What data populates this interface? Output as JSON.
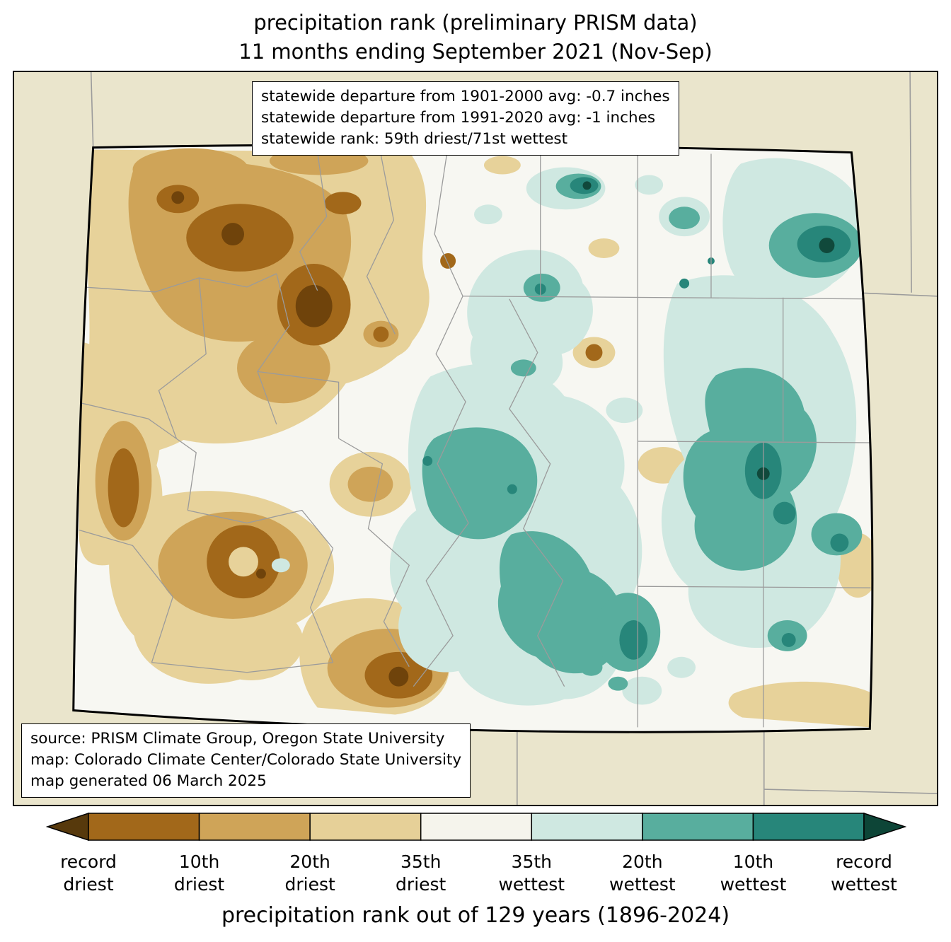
{
  "title": {
    "line1": "precipitation rank (preliminary PRISM data)",
    "line2": "11 months ending September 2021 (Nov-Sep)"
  },
  "stats_box": {
    "lines": [
      "statewide departure from 1901-2000 avg: -0.7 inches",
      "statewide departure from 1991-2020 avg: -1 inches",
      "statewide rank: 59th driest/71st wettest"
    ]
  },
  "source_box": {
    "lines": [
      "source: PRISM Climate Group, Oregon State University",
      "map: Colorado Climate Center/Colorado State University",
      "map generated 06 March 2025"
    ]
  },
  "colorbar": {
    "caption": "precipitation rank out of 129 years (1896-2024)",
    "left_arrow_color": "#57390c",
    "right_arrow_color": "#0d4537",
    "segments": [
      "#a2681a",
      "#cfa458",
      "#e6d098",
      "#f5f4ec",
      "#cfe8e1",
      "#58ae9e",
      "#27867a"
    ],
    "labels": [
      "record\ndriest",
      "10th\ndriest",
      "20th\ndriest",
      "35th\ndriest",
      "35th\nwettest",
      "20th\nwettest",
      "10th\nwettest",
      "record\nwettest"
    ]
  },
  "palette": {
    "bg-out": "#eae5cc",
    "state-fill": "#f7f7f2",
    "tan-light": "#e7d29a",
    "tan": "#cfa458",
    "brown": "#a2681a",
    "brown-dark": "#6f430b",
    "teal-pale": "#cfe8e1",
    "teal": "#58ae9e",
    "teal-dark": "#27867a",
    "teal-darkest": "#10493b",
    "county": "#9b9b9b",
    "line-grey": "#9b9b9b"
  }
}
